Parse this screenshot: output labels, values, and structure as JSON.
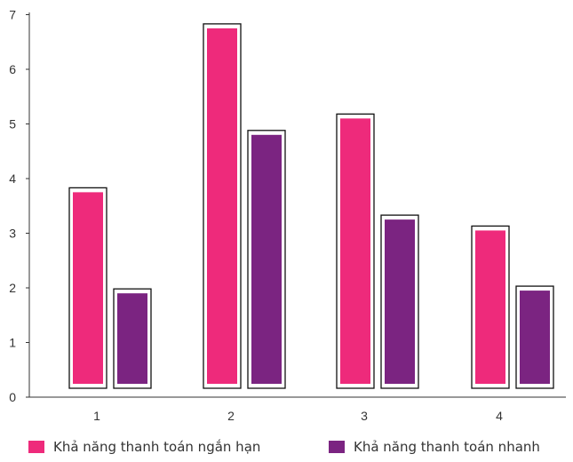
{
  "chart_data": {
    "type": "bar",
    "categories": [
      "1",
      "2",
      "3",
      "4"
    ],
    "series": [
      {
        "name": "Khả năng thanh toán ngắn hạn",
        "color": "#ee2a7b",
        "values": [
          3.75,
          6.75,
          5.1,
          3.05
        ]
      },
      {
        "name": "Khả năng thanh toán nhanh",
        "color": "#7b2481",
        "values": [
          1.9,
          4.8,
          3.25,
          1.95
        ]
      }
    ],
    "yticks": [
      "0",
      "1",
      "2",
      "3",
      "4",
      "5",
      "6",
      "7"
    ],
    "ylim": [
      0,
      7
    ],
    "grid": false,
    "legend_position": "bottom"
  }
}
